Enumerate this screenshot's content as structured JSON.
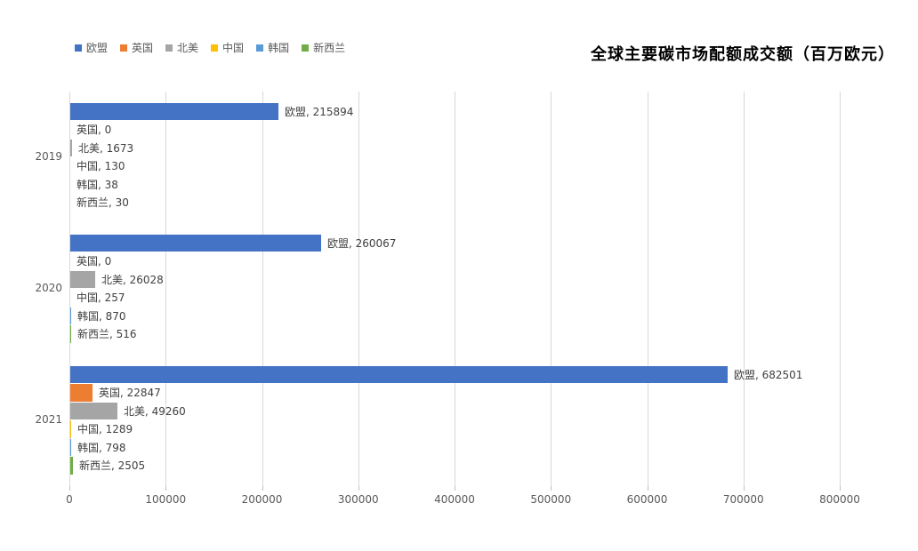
{
  "title": "全球主要碳市场配额成交额（百万欧元）",
  "colors": {
    "background": "#ffffff",
    "gridline": "#d9d9d9",
    "axis_text": "#595959",
    "data_label_text": "#404040",
    "title_text": "#000000"
  },
  "chart_data": {
    "type": "bar",
    "orientation": "horizontal",
    "title": "全球主要碳市场配额成交额（百万欧元）",
    "categories": [
      "2019",
      "2020",
      "2021"
    ],
    "series": [
      {
        "name": "欧盟",
        "color": "#4472C4",
        "values": [
          215894,
          260067,
          682501
        ]
      },
      {
        "name": "英国",
        "color": "#ED7D31",
        "values": [
          0,
          0,
          22847
        ]
      },
      {
        "name": "北美",
        "color": "#A5A5A5",
        "values": [
          1673,
          26028,
          49260
        ]
      },
      {
        "name": "中国",
        "color": "#FFC000",
        "values": [
          130,
          257,
          1289
        ]
      },
      {
        "name": "韩国",
        "color": "#5B9BD5",
        "values": [
          38,
          870,
          798
        ]
      },
      {
        "name": "新西兰",
        "color": "#70AD47",
        "values": [
          30,
          516,
          2505
        ]
      }
    ],
    "xlim": [
      0,
      800000
    ],
    "x_ticks": [
      0,
      100000,
      200000,
      300000,
      400000,
      500000,
      600000,
      700000,
      800000
    ],
    "grid": true,
    "legend_position": "top-left",
    "data_labels": true,
    "data_label_format": "{series}, {value}"
  }
}
